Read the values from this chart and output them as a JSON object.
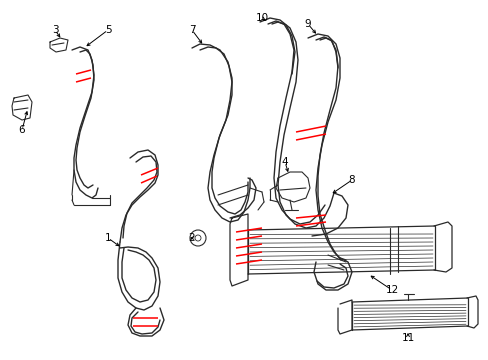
{
  "background_color": "#ffffff",
  "line_color": "#2a2a2a",
  "red_color": "#ff0000",
  "fig_width": 4.89,
  "fig_height": 3.6,
  "dpi": 100
}
